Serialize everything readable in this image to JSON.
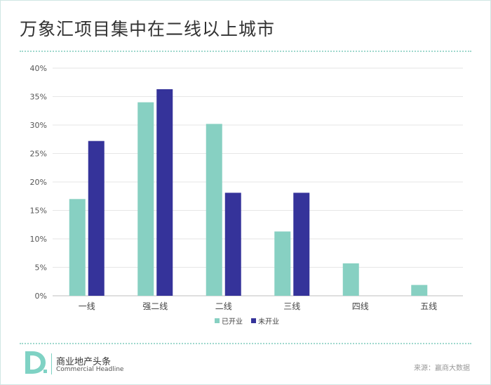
{
  "title": "万象汇项目集中在二线以上城市",
  "chart_data": {
    "type": "bar",
    "categories": [
      "一线",
      "强二线",
      "二线",
      "三线",
      "四线",
      "五线"
    ],
    "series": [
      {
        "name": "已开业",
        "values": [
          17.0,
          34.0,
          30.2,
          11.3,
          5.7,
          1.9
        ],
        "color": "#87d0c2"
      },
      {
        "name": "未开业",
        "values": [
          27.2,
          36.3,
          18.1,
          18.1,
          0,
          0
        ],
        "color": "#35339a"
      }
    ],
    "yticks": [
      "0%",
      "5%",
      "10%",
      "15%",
      "20%",
      "25%",
      "30%",
      "35%",
      "40%"
    ],
    "ylim": [
      0,
      40
    ],
    "legend_position": "bottom",
    "grid": true
  },
  "footer": {
    "brand_cn": "商业地产头条",
    "brand_en": "Commercial Headline",
    "source": "来源：赢商大数据"
  }
}
